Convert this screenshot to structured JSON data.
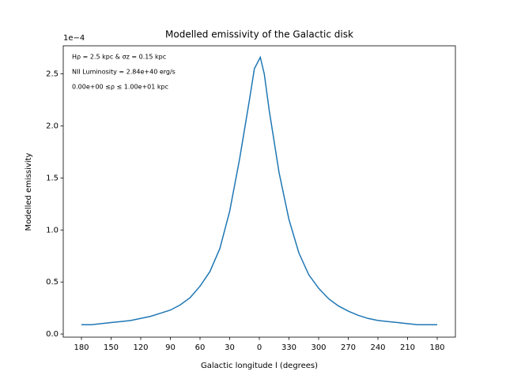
{
  "chart_data": {
    "type": "line",
    "title": "Modelled emissivity of the Galactic disk",
    "xlabel": "Galactic longitude l (degrees)",
    "ylabel": "Modelled emissivity",
    "y_offset_text": "1e−4",
    "annotations": [
      "Hρ = 2.5 kpc & σz = 0.15 kpc",
      "NII Luminosity = 2.84e+40 erg/s",
      "0.00e+00  ≤ρ ≤  1.00e+01 kpc"
    ],
    "color": "#1f77b4",
    "x": [
      180,
      170,
      160,
      150,
      140,
      130,
      120,
      110,
      100,
      90,
      80,
      70,
      60,
      50,
      40,
      30,
      20,
      10,
      5,
      -1,
      -5,
      -10,
      -20,
      -30,
      -40,
      -50,
      -60,
      -70,
      -80,
      -90,
      -100,
      -110,
      -120,
      -130,
      -140,
      -150,
      -160,
      -170,
      -180
    ],
    "values": [
      0.09,
      0.09,
      0.1,
      0.11,
      0.12,
      0.13,
      0.15,
      0.17,
      0.2,
      0.23,
      0.28,
      0.35,
      0.46,
      0.6,
      0.82,
      1.18,
      1.68,
      2.25,
      2.55,
      2.66,
      2.5,
      2.15,
      1.55,
      1.1,
      0.78,
      0.57,
      0.44,
      0.34,
      0.27,
      0.22,
      0.18,
      0.15,
      0.13,
      0.12,
      0.11,
      0.1,
      0.09,
      0.09,
      0.09
    ],
    "xlim": [
      198.4,
      -198.4
    ],
    "xticks": [
      180,
      150,
      120,
      90,
      60,
      30,
      0,
      {
        "value": -30,
        "label": "330"
      },
      {
        "value": -60,
        "label": "300"
      },
      {
        "value": -90,
        "label": "270"
      },
      {
        "value": -120,
        "label": "240"
      },
      {
        "value": -150,
        "label": "210"
      },
      {
        "value": -180,
        "label": "180"
      }
    ],
    "ylim": [
      -0.03,
      2.77
    ],
    "yticks": [
      {
        "value": 0,
        "label": "0.0"
      },
      0.5,
      {
        "value": 1,
        "label": "1.0"
      },
      1.5,
      {
        "value": 2,
        "label": "2.0"
      },
      2.5
    ]
  }
}
